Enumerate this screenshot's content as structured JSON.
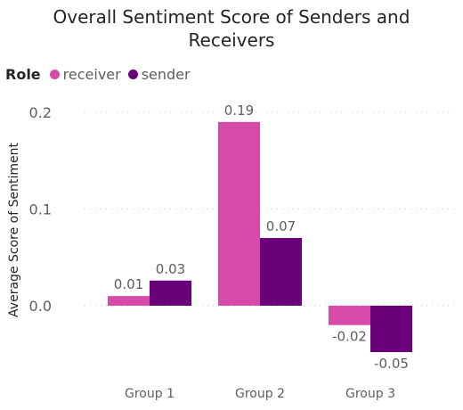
{
  "chart_data": {
    "type": "bar",
    "title_line1": "Overall Sentiment Score of Senders and",
    "title_line2": "Receivers",
    "legend_title": "Role",
    "legend_placement": "top-left",
    "ylabel": "Average Score of Sentiment",
    "xlabel": "",
    "categories": [
      "Group 1",
      "Group 2",
      "Group 3"
    ],
    "series": [
      {
        "name": "receiver",
        "color": "#d64ba8",
        "values": [
          0.01,
          0.19,
          -0.02
        ],
        "labels": [
          "0.01",
          "0.19",
          "-0.02"
        ]
      },
      {
        "name": "sender",
        "color": "#6b007b",
        "values": [
          0.026,
          0.07,
          -0.048
        ],
        "labels": [
          "0.03",
          "0.07",
          "-0.05"
        ]
      }
    ],
    "yticks": [
      0.0,
      0.1,
      0.2
    ],
    "ytick_labels": [
      "0.0",
      "0.1",
      "0.2"
    ],
    "ylim": [
      -0.05,
      0.2
    ],
    "grid": true
  }
}
